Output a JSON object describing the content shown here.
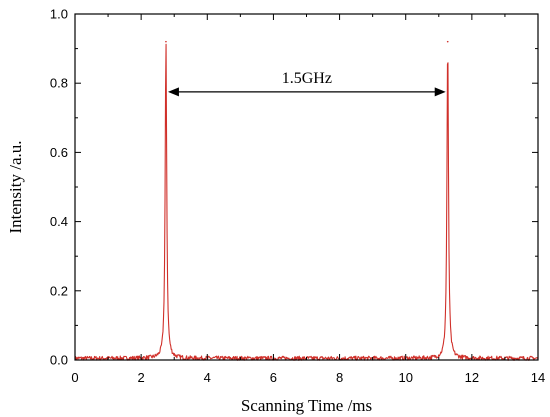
{
  "chart_data": {
    "type": "line",
    "xlabel": "Scanning Time /ms",
    "ylabel": "Intensity /a.u.",
    "xlim": [
      0,
      14
    ],
    "ylim": [
      0,
      1.0
    ],
    "x_ticks": [
      0,
      2,
      4,
      6,
      8,
      10,
      12,
      14
    ],
    "y_ticks": [
      0.0,
      0.2,
      0.4,
      0.6,
      0.8,
      1.0
    ],
    "x_tick_labels": [
      "0",
      "2",
      "4",
      "6",
      "8",
      "10",
      "12",
      "14"
    ],
    "y_tick_labels": [
      "0.0",
      "0.2",
      "0.4",
      "0.6",
      "0.8",
      "1.0"
    ],
    "grid": false,
    "series": [
      {
        "color": "#d0302a",
        "baseline": 0.005,
        "noise_amplitude": 0.006,
        "peaks": [
          {
            "x": 2.75,
            "y": 0.92
          },
          {
            "x": 11.27,
            "y": 0.92
          }
        ]
      }
    ],
    "annotation": {
      "text": "1.5GHz",
      "y": 0.775,
      "x_start": 2.75,
      "x_end": 11.27
    }
  }
}
